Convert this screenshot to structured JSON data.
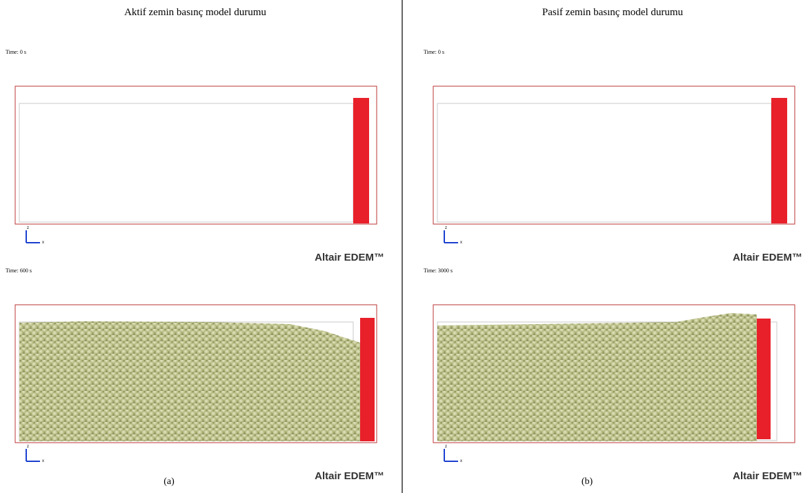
{
  "panels": [
    {
      "title": "Aktif zemin basınç model durumu",
      "caption": "(a)",
      "frames": [
        {
          "time": "Time: 0 s",
          "axis_z": "z",
          "axis_x": "x",
          "watermark": "Altair EDEM™"
        },
        {
          "time": "Time: 600 s",
          "axis_z": "z",
          "axis_x": "x",
          "watermark": "Altair EDEM™"
        }
      ]
    },
    {
      "title": "Pasif zemin basınç model durumu",
      "caption": "(b)",
      "frames": [
        {
          "time": "Time: 0 s",
          "axis_z": "z",
          "axis_x": "x",
          "watermark": "Altair EDEM™"
        },
        {
          "time": "Time: 3000 s",
          "axis_z": "z",
          "axis_x": "x",
          "watermark": "Altair EDEM™"
        }
      ]
    }
  ]
}
